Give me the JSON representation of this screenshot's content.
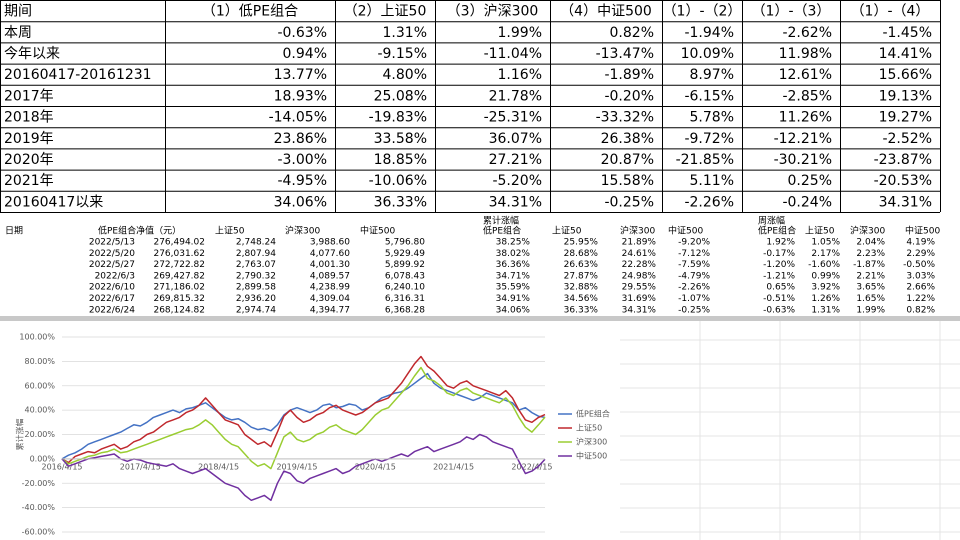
{
  "summary_table": {
    "header": [
      "期间",
      "（1）低PE组合",
      "（2）上证50",
      "（3）沪深300",
      "（4）中证500",
      "（1）-（2）",
      "（1）-（3）",
      "（1）-（4）"
    ],
    "rows": [
      [
        "本周",
        "-0.63%",
        "1.31%",
        "1.99%",
        "0.82%",
        "-1.94%",
        "-2.62%",
        "-1.45%"
      ],
      [
        "今年以来",
        "0.94%",
        "-9.15%",
        "-11.04%",
        "-13.47%",
        "10.09%",
        "11.98%",
        "14.41%"
      ],
      [
        "20160417-20161231",
        "13.77%",
        "4.80%",
        "1.16%",
        "-1.89%",
        "8.97%",
        "12.61%",
        "15.66%"
      ],
      [
        "2017年",
        "18.93%",
        "25.08%",
        "21.78%",
        "-0.20%",
        "-6.15%",
        "-2.85%",
        "19.13%"
      ],
      [
        "2018年",
        "-14.05%",
        "-19.83%",
        "-25.31%",
        "-33.32%",
        "5.78%",
        "11.26%",
        "19.27%"
      ],
      [
        "2019年",
        "23.86%",
        "33.58%",
        "36.07%",
        "26.38%",
        "-9.72%",
        "-12.21%",
        "-2.52%"
      ],
      [
        "2020年",
        "-3.00%",
        "18.85%",
        "27.21%",
        "20.87%",
        "-21.85%",
        "-30.21%",
        "-23.87%"
      ],
      [
        "2021年",
        "-4.95%",
        "-10.06%",
        "-5.20%",
        "15.58%",
        "5.11%",
        "0.25%",
        "-20.53%"
      ],
      [
        "20160417以来",
        "34.06%",
        "36.33%",
        "34.31%",
        "-0.25%",
        "-2.26%",
        "-0.24%",
        "34.31%"
      ]
    ]
  },
  "sheet": {
    "group_headers": [
      "累计涨幅",
      "周涨幅"
    ],
    "header": [
      "日期",
      "低PE组合净值（元）",
      "上证50",
      "沪深300",
      "中证500",
      "低PE组合",
      "上证50",
      "沪深300",
      "中证500",
      "低PE组合",
      "上证50",
      "沪深300",
      "中证500"
    ],
    "rows": [
      [
        "2022/5/13",
        "276,494.02",
        "2,748.24",
        "3,988.60",
        "5,796.80",
        "38.25%",
        "25.95%",
        "21.89%",
        "-9.20%",
        "1.92%",
        "1.05%",
        "2.04%",
        "4.19%"
      ],
      [
        "2022/5/20",
        "276,031.62",
        "2,807.94",
        "4,077.60",
        "5,929.49",
        "38.02%",
        "28.68%",
        "24.61%",
        "-7.12%",
        "-0.17%",
        "2.17%",
        "2.23%",
        "2.29%"
      ],
      [
        "2022/5/27",
        "272,722.82",
        "2,763.07",
        "4,001.30",
        "5,899.92",
        "36.36%",
        "26.63%",
        "22.28%",
        "-7.59%",
        "-1.20%",
        "-1.60%",
        "-1.87%",
        "-0.50%"
      ],
      [
        "2022/6/3",
        "269,427.82",
        "2,790.32",
        "4,089.57",
        "6,078.43",
        "34.71%",
        "27.87%",
        "24.98%",
        "-4.79%",
        "-1.21%",
        "0.99%",
        "2.21%",
        "3.03%"
      ],
      [
        "2022/6/10",
        "271,186.02",
        "2,899.58",
        "4,238.99",
        "6,240.10",
        "35.59%",
        "32.88%",
        "29.55%",
        "-2.26%",
        "0.65%",
        "3.92%",
        "3.65%",
        "2.66%"
      ],
      [
        "2022/6/17",
        "269,815.32",
        "2,936.20",
        "4,309.04",
        "6,316.31",
        "34.91%",
        "34.56%",
        "31.69%",
        "-1.07%",
        "-0.51%",
        "1.26%",
        "1.65%",
        "1.22%"
      ],
      [
        "2022/6/24",
        "268,124.82",
        "2,974.74",
        "4,394.77",
        "6,368.28",
        "34.06%",
        "36.33%",
        "34.31%",
        "-0.25%",
        "-0.63%",
        "1.31%",
        "1.99%",
        "0.82%"
      ]
    ]
  },
  "chart_data": {
    "type": "line",
    "y_axis_label": "累计涨幅",
    "categories": [
      "2016/4/15",
      null,
      null,
      null,
      null,
      null,
      null,
      null,
      null,
      null,
      null,
      null,
      "2017/4/15",
      null,
      null,
      null,
      null,
      null,
      null,
      null,
      null,
      null,
      null,
      null,
      "2018/4/15",
      null,
      null,
      null,
      null,
      null,
      null,
      null,
      null,
      null,
      null,
      null,
      "2019/4/15",
      null,
      null,
      null,
      null,
      null,
      null,
      null,
      null,
      null,
      null,
      null,
      "2020/4/15",
      null,
      null,
      null,
      null,
      null,
      null,
      null,
      null,
      null,
      null,
      null,
      "2021/4/15",
      null,
      null,
      null,
      null,
      null,
      null,
      null,
      null,
      null,
      null,
      null,
      "2022/4/15",
      null,
      null
    ],
    "series": [
      {
        "name": "低PE组合",
        "color": "#4472c4",
        "values": [
          0,
          3,
          5,
          8,
          12,
          14,
          16,
          18,
          20,
          22,
          25,
          28,
          27,
          30,
          34,
          36,
          38,
          40,
          38,
          41,
          42,
          44,
          46,
          42,
          38,
          34,
          32,
          33,
          30,
          26,
          24,
          25,
          23,
          28,
          36,
          40,
          42,
          40,
          38,
          40,
          44,
          45,
          42,
          43,
          45,
          44,
          40,
          42,
          46,
          50,
          52,
          54,
          55,
          58,
          62,
          66,
          70,
          62,
          58,
          56,
          54,
          52,
          50,
          48,
          50,
          54,
          52,
          50,
          48,
          46,
          40,
          42,
          38,
          35,
          34.06
        ]
      },
      {
        "name": "上证50",
        "color": "#c0282d",
        "values": [
          0,
          -3,
          2,
          4,
          6,
          5,
          8,
          10,
          12,
          8,
          10,
          14,
          16,
          20,
          22,
          26,
          30,
          32,
          34,
          38,
          40,
          44,
          50,
          44,
          38,
          32,
          30,
          28,
          20,
          16,
          12,
          14,
          10,
          22,
          35,
          40,
          34,
          30,
          32,
          36,
          38,
          42,
          44,
          40,
          38,
          36,
          38,
          42,
          46,
          48,
          50,
          56,
          62,
          70,
          78,
          84,
          76,
          72,
          66,
          60,
          58,
          62,
          64,
          60,
          58,
          56,
          54,
          52,
          56,
          50,
          40,
          32,
          30,
          34,
          36.33
        ]
      },
      {
        "name": "沪深300",
        "color": "#9acd32",
        "values": [
          0,
          -4,
          -2,
          0,
          2,
          3,
          5,
          6,
          8,
          5,
          6,
          8,
          10,
          12,
          14,
          16,
          18,
          20,
          22,
          24,
          25,
          28,
          32,
          28,
          22,
          16,
          12,
          10,
          4,
          -2,
          -6,
          -4,
          -8,
          5,
          18,
          22,
          16,
          14,
          16,
          20,
          22,
          26,
          28,
          24,
          22,
          20,
          24,
          30,
          36,
          40,
          42,
          48,
          54,
          60,
          68,
          75,
          66,
          64,
          60,
          54,
          52,
          56,
          58,
          54,
          52,
          50,
          48,
          46,
          50,
          44,
          34,
          26,
          22,
          28,
          34.31
        ]
      },
      {
        "name": "中证500",
        "color": "#7030a0",
        "values": [
          0,
          -6,
          -4,
          -2,
          0,
          1,
          2,
          3,
          4,
          0,
          -2,
          0,
          -1,
          -3,
          -4,
          -5,
          -6,
          -4,
          -8,
          -10,
          -12,
          -10,
          -8,
          -12,
          -16,
          -20,
          -22,
          -24,
          -30,
          -34,
          -32,
          -30,
          -34,
          -20,
          -10,
          -12,
          -18,
          -20,
          -16,
          -14,
          -12,
          -10,
          -8,
          -12,
          -10,
          -6,
          -4,
          -2,
          0,
          -2,
          0,
          2,
          4,
          2,
          6,
          8,
          10,
          6,
          8,
          10,
          12,
          14,
          18,
          16,
          20,
          18,
          14,
          12,
          10,
          8,
          -2,
          -12,
          -10,
          -6,
          -0.25
        ]
      }
    ],
    "ylim": [
      -60,
      100
    ],
    "yticks": [
      {
        "value": -60,
        "label": "-60.00%"
      },
      {
        "value": -40,
        "label": "-40.00%"
      },
      {
        "value": -20,
        "label": "-20.00%"
      },
      {
        "value": 0,
        "label": "0.00%"
      },
      {
        "value": 20,
        "label": "20.00%"
      },
      {
        "value": 40,
        "label": "40.00%"
      },
      {
        "value": 60,
        "label": "60.00%"
      },
      {
        "value": 80,
        "label": "80.00%"
      },
      {
        "value": 100,
        "label": "100.00%"
      }
    ],
    "grid": true,
    "legend": "right"
  }
}
